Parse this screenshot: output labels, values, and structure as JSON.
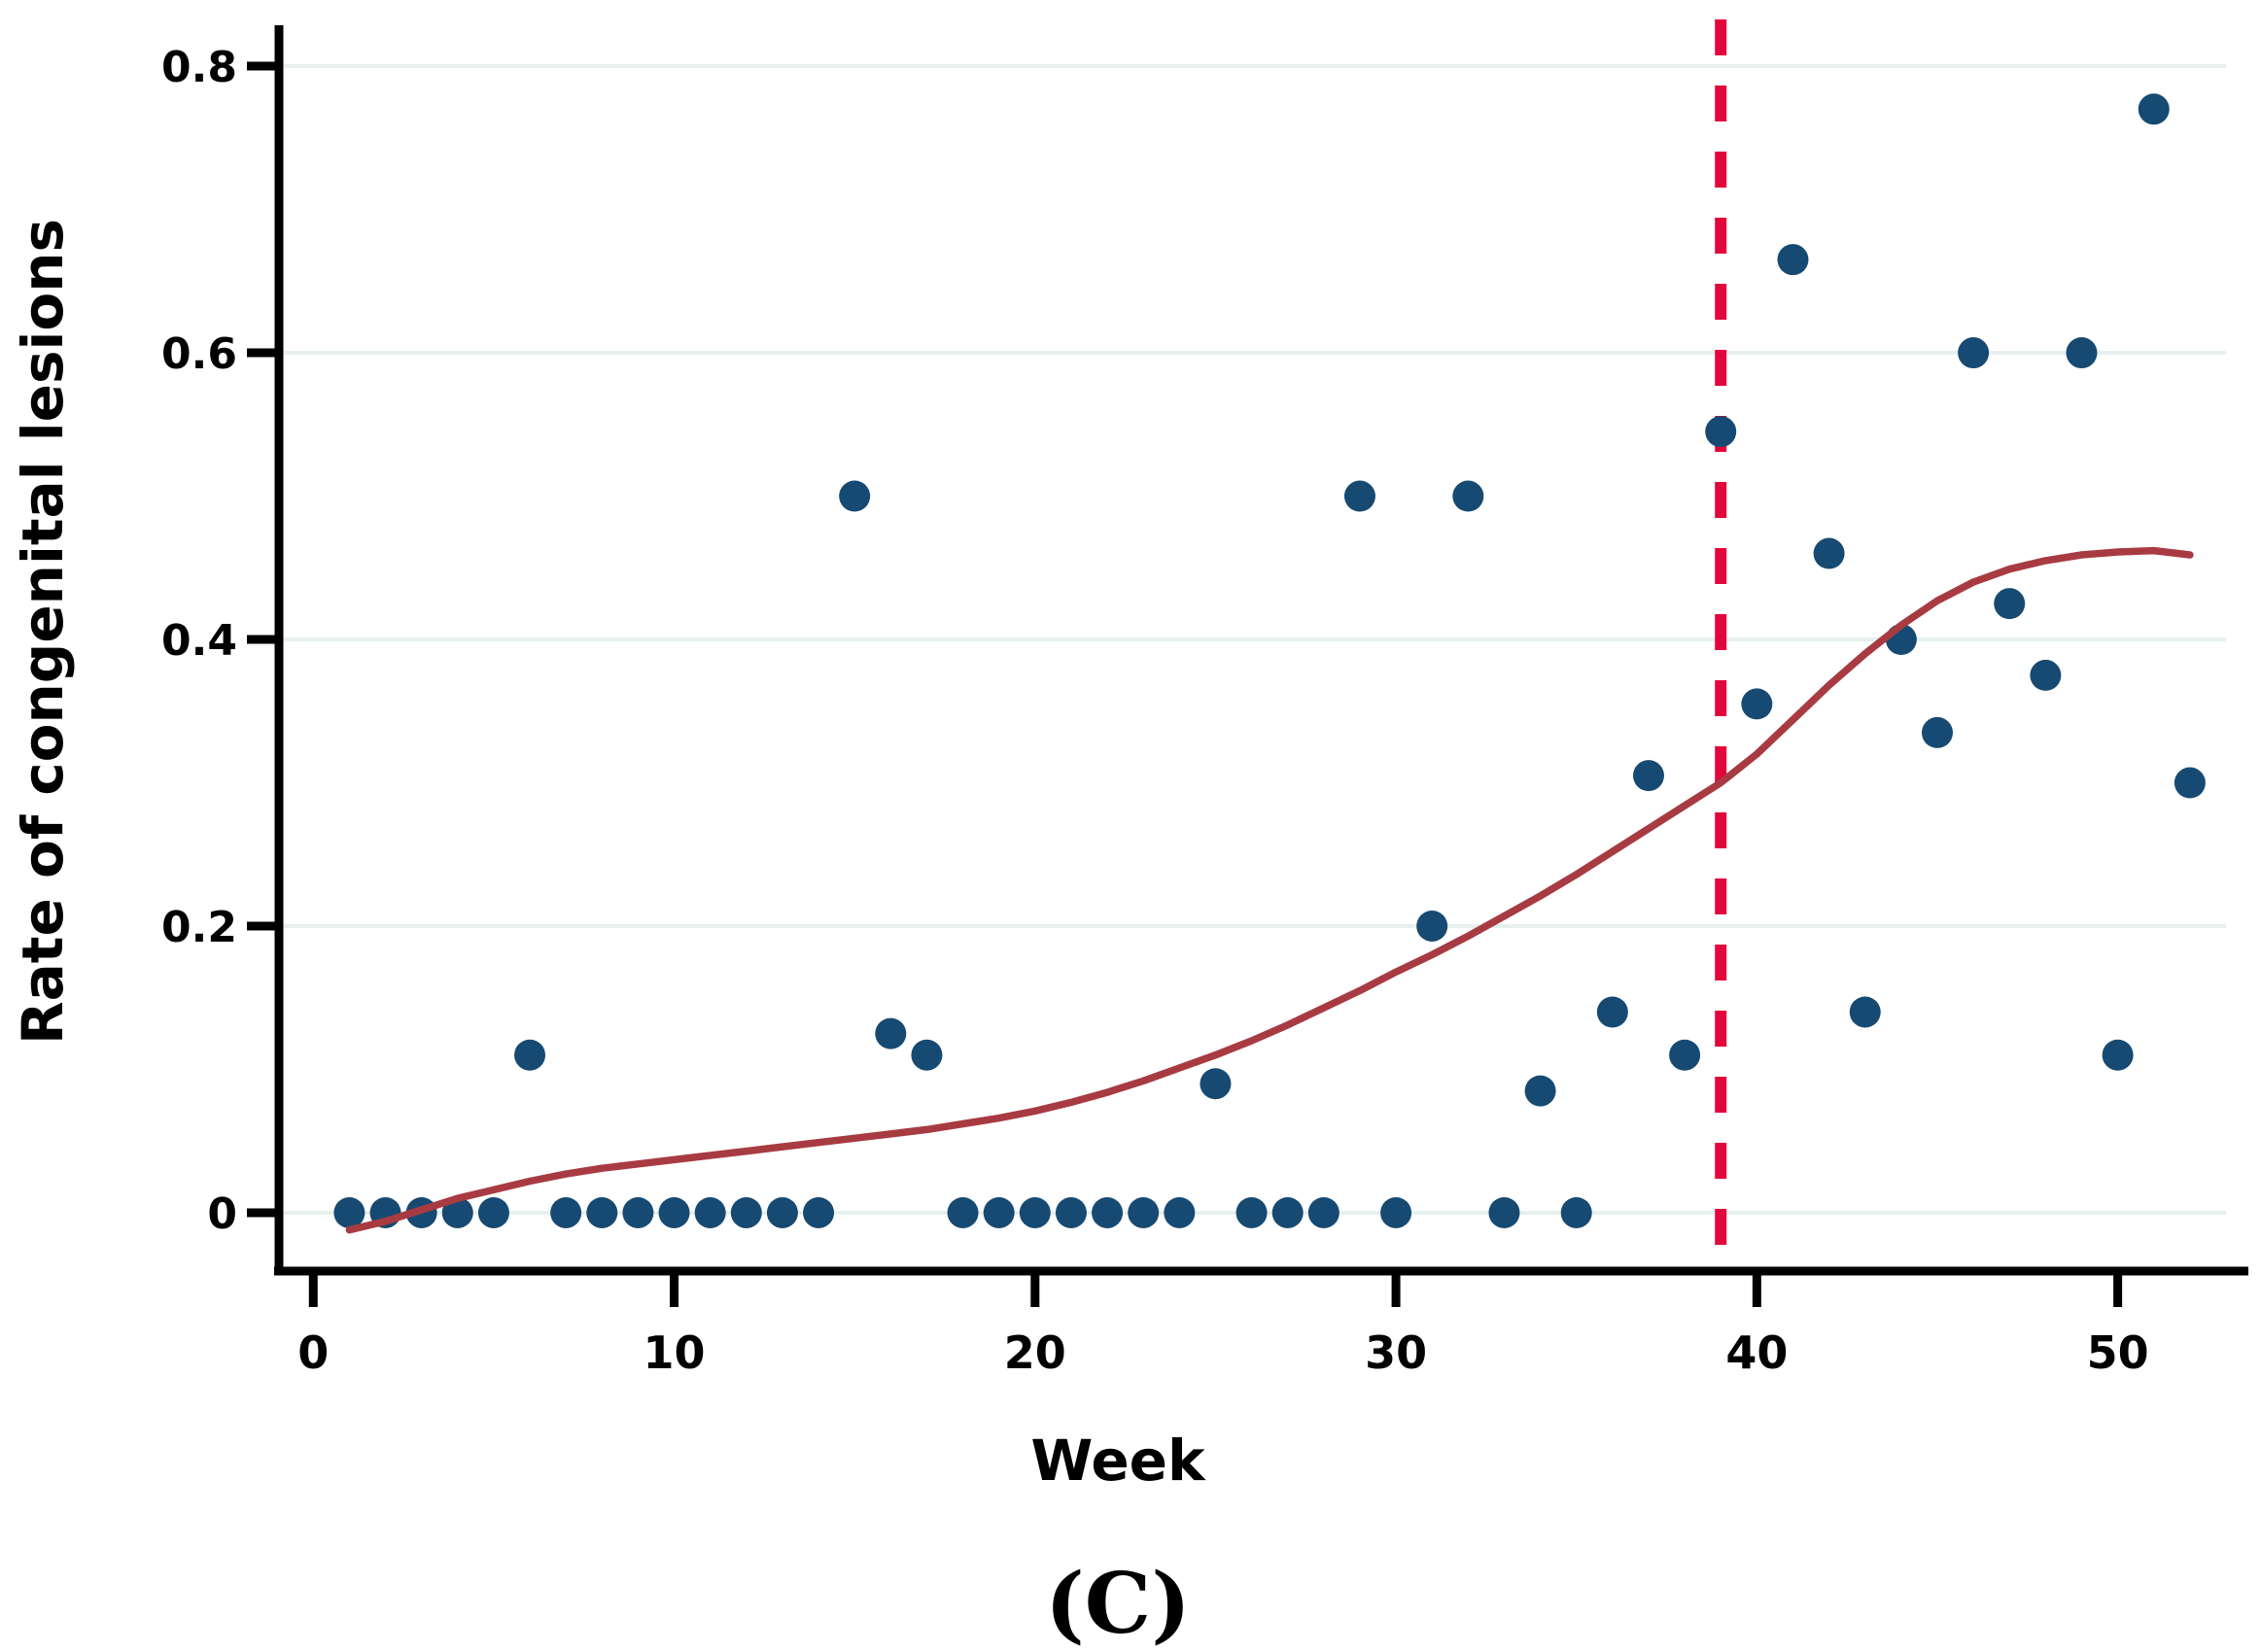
{
  "figure": {
    "caption": "(C)"
  },
  "chart_data": {
    "type": "scatter",
    "title": "",
    "xlabel": "Week",
    "ylabel": "Rate of congenital lesions",
    "xticks": [
      0,
      10,
      20,
      30,
      40,
      50
    ],
    "xtick_labels": [
      "0",
      "10",
      "20",
      "30",
      "40",
      "50"
    ],
    "yticks": [
      0,
      0.2,
      0.4,
      0.6,
      0.8
    ],
    "ytick_labels": [
      "0",
      "0.2",
      "0.4",
      "0.6",
      "0.8"
    ],
    "xlim": [
      -0.95,
      53.0
    ],
    "ylim": [
      -0.0407,
      0.8258
    ],
    "grid": "horizontal-only",
    "legend": "none",
    "vline_x": 39,
    "points": [
      [
        1,
        0
      ],
      [
        2,
        0
      ],
      [
        3,
        0
      ],
      [
        4,
        0
      ],
      [
        5,
        0
      ],
      [
        6,
        0.11
      ],
      [
        7,
        0
      ],
      [
        8,
        0
      ],
      [
        9,
        0
      ],
      [
        10,
        0
      ],
      [
        11,
        0
      ],
      [
        12,
        0
      ],
      [
        13,
        0
      ],
      [
        14,
        0
      ],
      [
        15,
        0.5
      ],
      [
        16,
        0.125
      ],
      [
        17,
        0.11
      ],
      [
        18,
        0
      ],
      [
        19,
        0
      ],
      [
        20,
        0
      ],
      [
        21,
        0
      ],
      [
        22,
        0
      ],
      [
        23,
        0
      ],
      [
        24,
        0
      ],
      [
        25,
        0.09
      ],
      [
        26,
        0
      ],
      [
        27,
        0
      ],
      [
        28,
        0
      ],
      [
        29,
        0.5
      ],
      [
        30,
        0
      ],
      [
        31,
        0.2
      ],
      [
        32,
        0.5
      ],
      [
        33,
        0
      ],
      [
        34,
        0.085
      ],
      [
        35,
        0
      ],
      [
        36,
        0.14
      ],
      [
        37,
        0.305
      ],
      [
        38,
        0.11
      ],
      [
        39,
        0.545
      ],
      [
        40,
        0.355
      ],
      [
        41,
        0.665
      ],
      [
        42,
        0.46
      ],
      [
        43,
        0.14
      ],
      [
        44,
        0.4
      ],
      [
        45,
        0.335
      ],
      [
        46,
        0.6
      ],
      [
        47,
        0.425
      ],
      [
        48,
        0.375
      ],
      [
        49,
        0.6
      ],
      [
        50,
        0.11
      ],
      [
        51,
        0.77
      ],
      [
        52,
        0.3
      ]
    ],
    "lowess": [
      [
        1,
        -0.012
      ],
      [
        2,
        -0.006
      ],
      [
        3,
        0.002
      ],
      [
        4,
        0.01
      ],
      [
        5,
        0.016
      ],
      [
        6,
        0.022
      ],
      [
        7,
        0.027
      ],
      [
        8,
        0.031
      ],
      [
        9,
        0.034
      ],
      [
        10,
        0.037
      ],
      [
        11,
        0.04
      ],
      [
        12,
        0.043
      ],
      [
        13,
        0.046
      ],
      [
        14,
        0.049
      ],
      [
        15,
        0.052
      ],
      [
        16,
        0.055
      ],
      [
        17,
        0.058
      ],
      [
        18,
        0.062
      ],
      [
        19,
        0.066
      ],
      [
        20,
        0.071
      ],
      [
        21,
        0.077
      ],
      [
        22,
        0.084
      ],
      [
        23,
        0.092
      ],
      [
        24,
        0.101
      ],
      [
        25,
        0.11
      ],
      [
        26,
        0.12
      ],
      [
        27,
        0.131
      ],
      [
        28,
        0.143
      ],
      [
        29,
        0.155
      ],
      [
        30,
        0.168
      ],
      [
        31,
        0.18
      ],
      [
        32,
        0.193
      ],
      [
        33,
        0.207
      ],
      [
        34,
        0.221
      ],
      [
        35,
        0.236
      ],
      [
        36,
        0.252
      ],
      [
        37,
        0.268
      ],
      [
        38,
        0.284
      ],
      [
        39,
        0.3
      ],
      [
        40,
        0.32
      ],
      [
        41,
        0.344
      ],
      [
        42,
        0.368
      ],
      [
        43,
        0.39
      ],
      [
        44,
        0.41
      ],
      [
        45,
        0.427
      ],
      [
        46,
        0.44
      ],
      [
        47,
        0.449
      ],
      [
        48,
        0.455
      ],
      [
        49,
        0.459
      ],
      [
        50,
        0.461
      ],
      [
        51,
        0.462
      ],
      [
        52,
        0.459
      ]
    ],
    "colors": {
      "point": "#164a72",
      "lowess_line": "#a83b42",
      "vline": "#e2063c",
      "gridline": "#e6f0ef",
      "axis": "#000000",
      "background": "#ffffff"
    }
  }
}
